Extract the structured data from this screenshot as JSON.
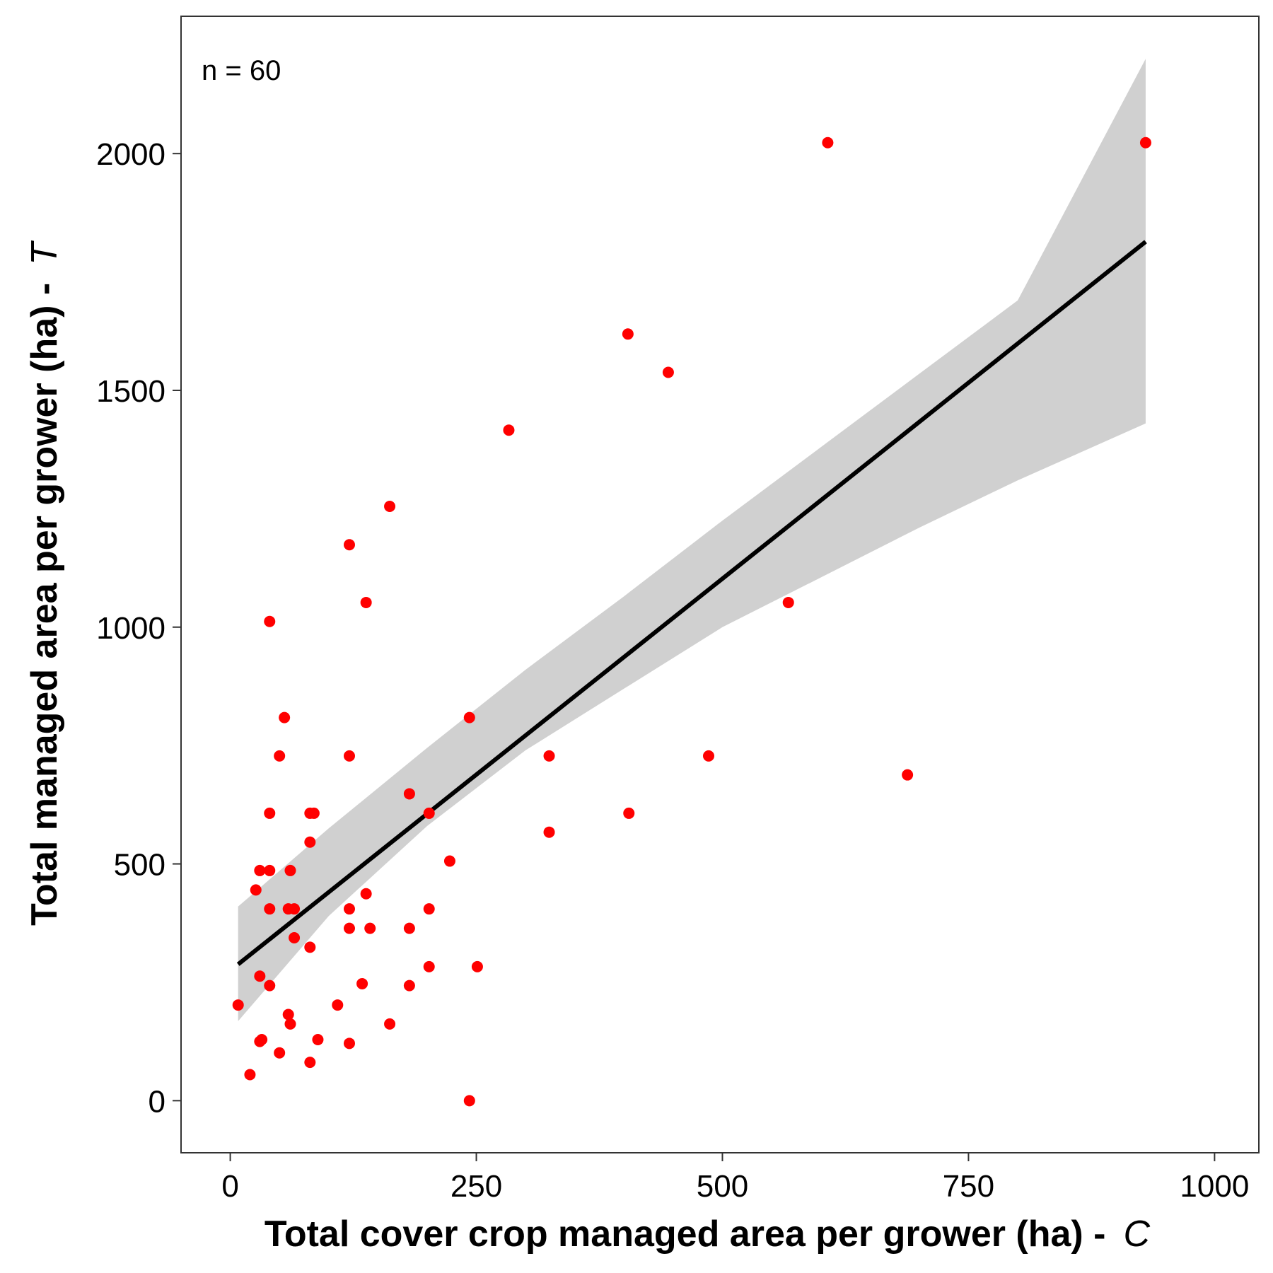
{
  "chart_data": {
    "type": "scatter",
    "title": "",
    "xlabel": "Total cover crop managed area per grower (ha) -",
    "xlabel_var": "C",
    "ylabel": "Total managed area per grower (ha) -",
    "ylabel_var": "T",
    "annotation": "n = 60",
    "xlim": [
      -50,
      1045
    ],
    "ylim": [
      -110,
      2290
    ],
    "xticks": [
      0,
      250,
      500,
      750,
      1000
    ],
    "yticks": [
      0,
      500,
      1000,
      1500,
      2000
    ],
    "xtick_labels": [
      "0",
      "250",
      "500",
      "750",
      "1000"
    ],
    "ytick_labels": [
      "0",
      "500",
      "1000",
      "1500",
      "2000"
    ],
    "grid": false,
    "point_color": "#ff0000",
    "line_color": "#000000",
    "band_color": "#d0d0d0",
    "points": [
      {
        "x": 607,
        "y": 2023
      },
      {
        "x": 930,
        "y": 2023
      },
      {
        "x": 404,
        "y": 1619
      },
      {
        "x": 445,
        "y": 1538
      },
      {
        "x": 283,
        "y": 1416
      },
      {
        "x": 162,
        "y": 1255
      },
      {
        "x": 121,
        "y": 1174
      },
      {
        "x": 138,
        "y": 1052
      },
      {
        "x": 567,
        "y": 1052
      },
      {
        "x": 40,
        "y": 1012
      },
      {
        "x": 55,
        "y": 809
      },
      {
        "x": 243,
        "y": 809
      },
      {
        "x": 50,
        "y": 728
      },
      {
        "x": 121,
        "y": 728
      },
      {
        "x": 324,
        "y": 728
      },
      {
        "x": 486,
        "y": 728
      },
      {
        "x": 688,
        "y": 688
      },
      {
        "x": 182,
        "y": 648
      },
      {
        "x": 40,
        "y": 607
      },
      {
        "x": 81,
        "y": 607
      },
      {
        "x": 85,
        "y": 607
      },
      {
        "x": 202,
        "y": 607
      },
      {
        "x": 405,
        "y": 607
      },
      {
        "x": 324,
        "y": 567
      },
      {
        "x": 81,
        "y": 546
      },
      {
        "x": 223,
        "y": 506
      },
      {
        "x": 30,
        "y": 486
      },
      {
        "x": 40,
        "y": 486
      },
      {
        "x": 61,
        "y": 486
      },
      {
        "x": 26,
        "y": 445
      },
      {
        "x": 138,
        "y": 437
      },
      {
        "x": 40,
        "y": 405
      },
      {
        "x": 59,
        "y": 405
      },
      {
        "x": 65,
        "y": 405
      },
      {
        "x": 121,
        "y": 405
      },
      {
        "x": 202,
        "y": 405
      },
      {
        "x": 121,
        "y": 364
      },
      {
        "x": 142,
        "y": 364
      },
      {
        "x": 182,
        "y": 364
      },
      {
        "x": 65,
        "y": 344
      },
      {
        "x": 81,
        "y": 324
      },
      {
        "x": 202,
        "y": 283
      },
      {
        "x": 251,
        "y": 283
      },
      {
        "x": 30,
        "y": 263
      },
      {
        "x": 40,
        "y": 243
      },
      {
        "x": 134,
        "y": 247
      },
      {
        "x": 182,
        "y": 243
      },
      {
        "x": 8,
        "y": 202
      },
      {
        "x": 109,
        "y": 202
      },
      {
        "x": 59,
        "y": 182
      },
      {
        "x": 61,
        "y": 162
      },
      {
        "x": 162,
        "y": 162
      },
      {
        "x": 30,
        "y": 125
      },
      {
        "x": 32,
        "y": 129
      },
      {
        "x": 89,
        "y": 129
      },
      {
        "x": 121,
        "y": 121
      },
      {
        "x": 50,
        "y": 101
      },
      {
        "x": 81,
        "y": 81
      },
      {
        "x": 20,
        "y": 55
      },
      {
        "x": 243,
        "y": 0
      }
    ],
    "fit_line": {
      "x": [
        8,
        930
      ],
      "y": [
        288,
        1814
      ]
    },
    "confidence_band": {
      "x": [
        8,
        100,
        200,
        300,
        400,
        500,
        600,
        700,
        800,
        930
      ],
      "lower": [
        168,
        390,
        580,
        740,
        870,
        1000,
        1105,
        1210,
        1310,
        1430
      ],
      "upper": [
        410,
        575,
        745,
        910,
        1065,
        1225,
        1380,
        1535,
        1690,
        2200
      ]
    }
  }
}
